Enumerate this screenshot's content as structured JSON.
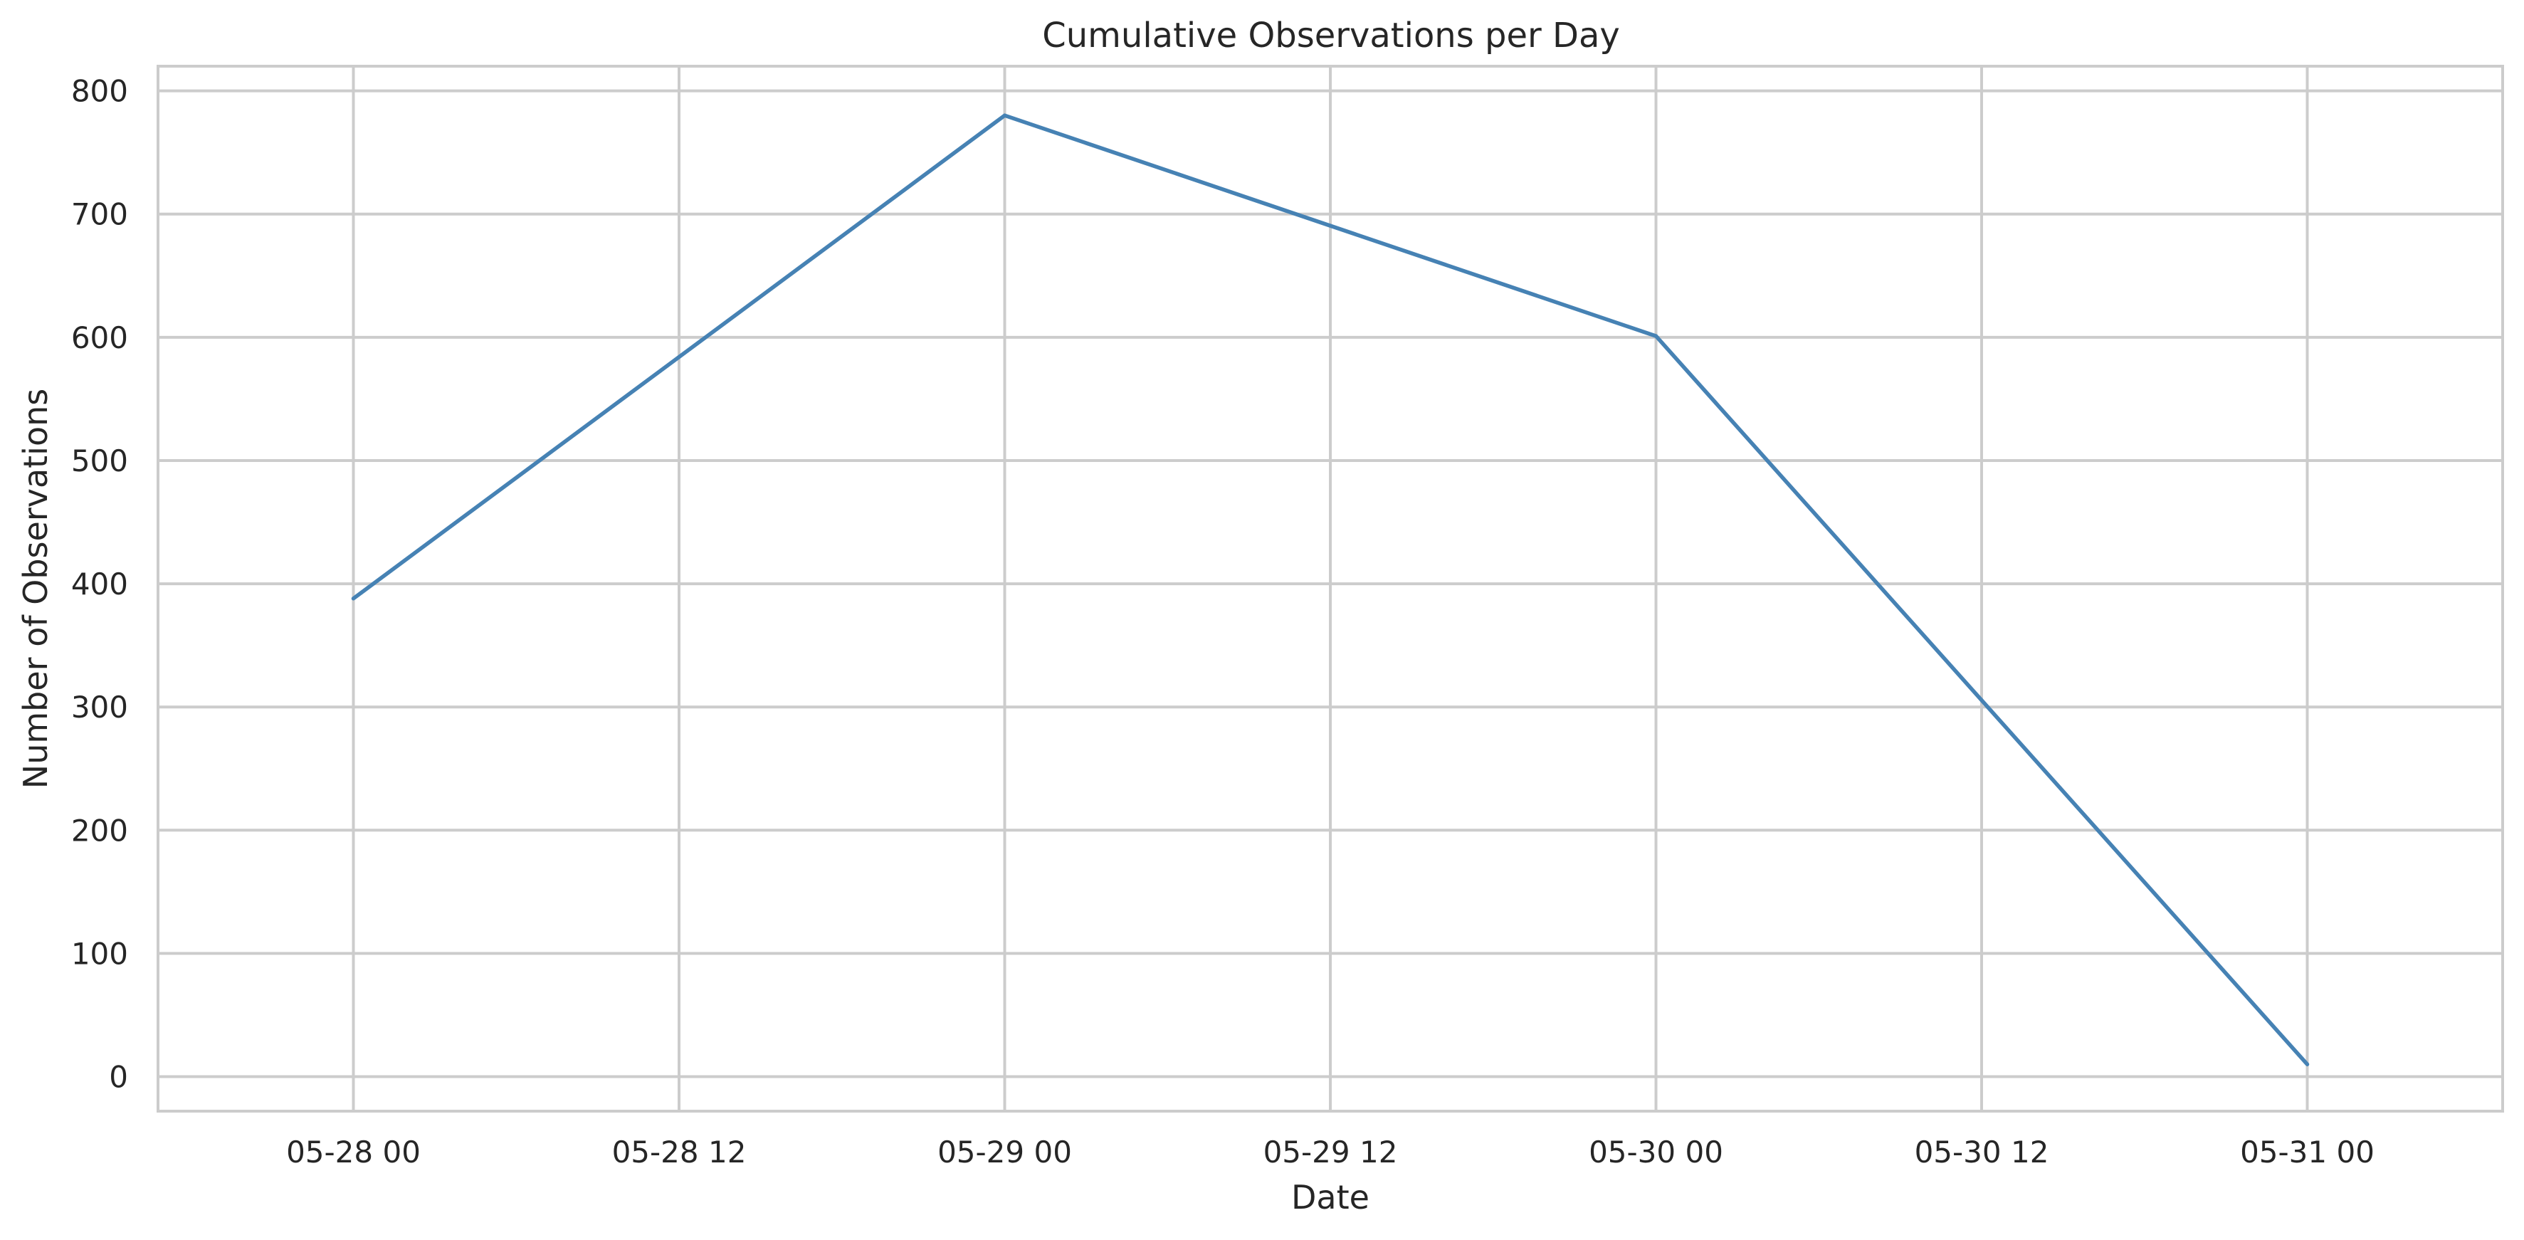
{
  "chart_data": {
    "type": "line",
    "title": "Cumulative Observations per Day",
    "xlabel": "Date",
    "ylabel": "Number of Observations",
    "x_ticks": [
      {
        "value": "2025-05-28T00:00",
        "label": "05-28 00"
      },
      {
        "value": "2025-05-28T12:00",
        "label": "05-28 12"
      },
      {
        "value": "2025-05-29T00:00",
        "label": "05-29 00"
      },
      {
        "value": "2025-05-29T12:00",
        "label": "05-29 12"
      },
      {
        "value": "2025-05-30T00:00",
        "label": "05-30 00"
      },
      {
        "value": "2025-05-30T12:00",
        "label": "05-30 12"
      },
      {
        "value": "2025-05-31T00:00",
        "label": "05-31 00"
      }
    ],
    "y_ticks": [
      0,
      100,
      200,
      300,
      400,
      500,
      600,
      700,
      800
    ],
    "xlim": [
      "2025-05-27T16:48",
      "2025-05-31T07:12"
    ],
    "ylim": [
      -28,
      820
    ],
    "grid": true,
    "series": [
      {
        "color": "#4682b4",
        "x": [
          "2025-05-28T00:00",
          "2025-05-29T00:00",
          "2025-05-30T00:00",
          "2025-05-31T00:00"
        ],
        "y": [
          388,
          780,
          601,
          10
        ]
      }
    ]
  }
}
